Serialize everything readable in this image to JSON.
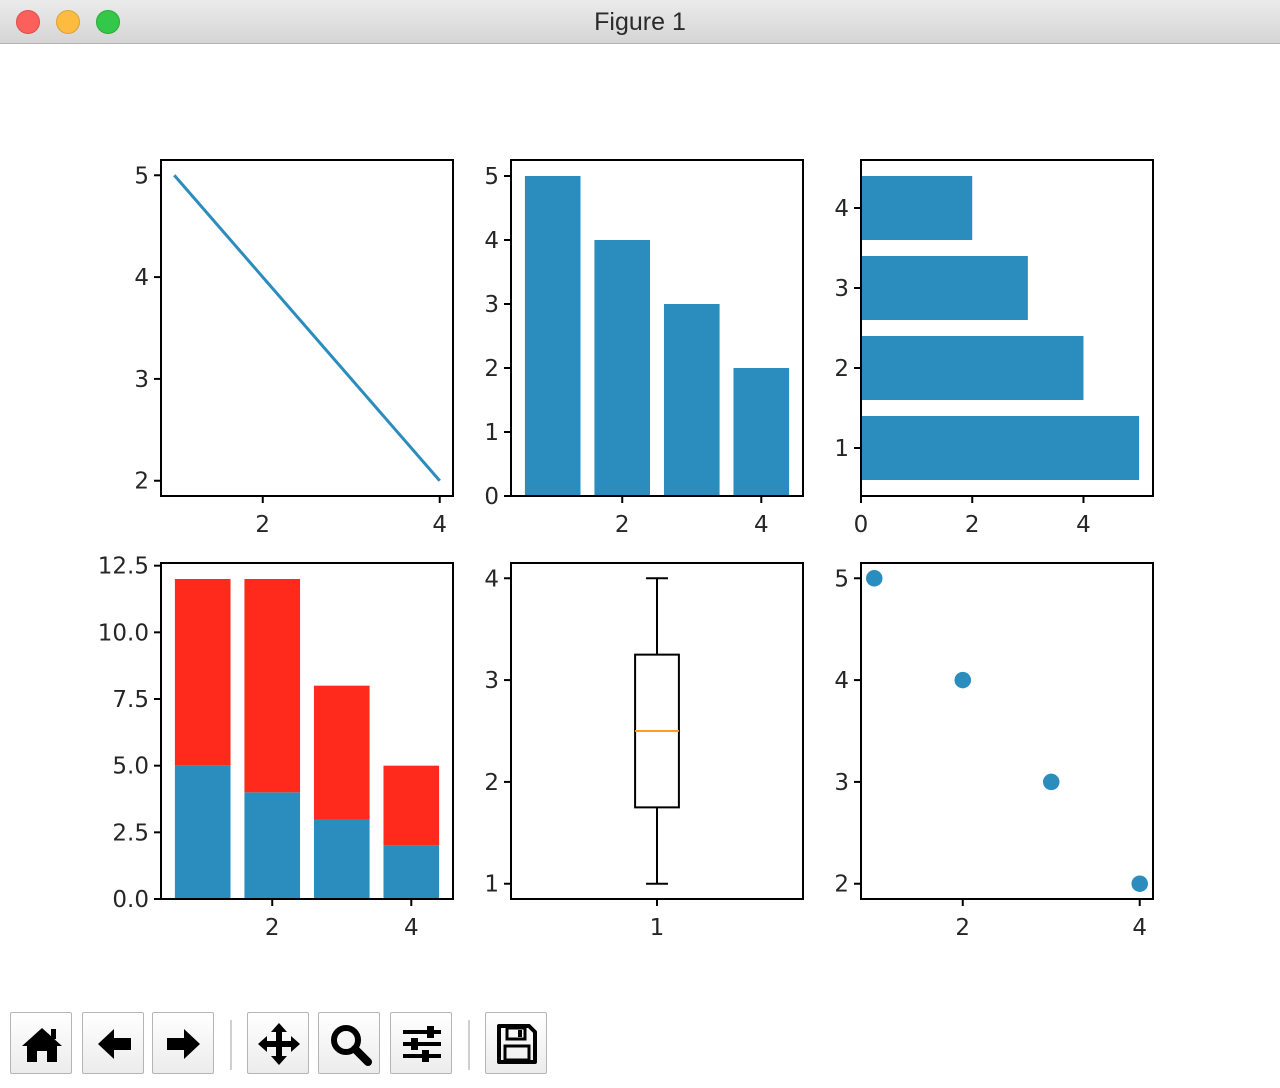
{
  "window": {
    "title": "Figure 1"
  },
  "toolbar": {
    "buttons": [
      {
        "name": "home",
        "icon": "home-icon"
      },
      {
        "name": "back",
        "icon": "arrow-left-icon"
      },
      {
        "name": "forward",
        "icon": "arrow-right-icon"
      },
      {
        "name": "pan",
        "icon": "move-icon"
      },
      {
        "name": "zoom",
        "icon": "magnifier-icon"
      },
      {
        "name": "configure-subplots",
        "icon": "sliders-icon"
      },
      {
        "name": "save",
        "icon": "floppy-disk-icon"
      }
    ]
  },
  "colors": {
    "blue": "#2b8cbe",
    "red": "#ff2a1c",
    "orange": "#ff9a2a",
    "axis": "#000000"
  },
  "chart_data": [
    {
      "type": "line",
      "x": [
        1,
        2,
        3,
        4
      ],
      "y": [
        5,
        4,
        3,
        2
      ],
      "xlim": [
        0.85,
        4.15
      ],
      "ylim": [
        1.85,
        5.15
      ],
      "xticks": [
        2,
        4
      ],
      "yticks": [
        2,
        3,
        4,
        5
      ],
      "xticklabels": [
        "2",
        "4"
      ],
      "yticklabels": [
        "2",
        "3",
        "4",
        "5"
      ],
      "xlabel": "",
      "ylabel": "",
      "grid": false
    },
    {
      "type": "bar",
      "x": [
        1,
        2,
        3,
        4
      ],
      "values": [
        5,
        4,
        3,
        2
      ],
      "xlim": [
        0.4,
        4.6
      ],
      "ylim": [
        0,
        5.25
      ],
      "xticks": [
        2,
        4
      ],
      "yticks": [
        0,
        1,
        2,
        3,
        4,
        5
      ],
      "xticklabels": [
        "2",
        "4"
      ],
      "yticklabels": [
        "0",
        "1",
        "2",
        "3",
        "4",
        "5"
      ],
      "xlabel": "",
      "ylabel": "",
      "grid": false
    },
    {
      "type": "bar",
      "orientation": "horizontal",
      "y": [
        1,
        2,
        3,
        4
      ],
      "values": [
        5,
        4,
        3,
        2
      ],
      "xlim": [
        0,
        5.25
      ],
      "ylim": [
        0.4,
        4.6
      ],
      "xticks": [
        0,
        2,
        4
      ],
      "yticks": [
        1,
        2,
        3,
        4
      ],
      "xticklabels": [
        "0",
        "2",
        "4"
      ],
      "yticklabels": [
        "1",
        "2",
        "3",
        "4"
      ],
      "xlabel": "",
      "ylabel": "",
      "grid": false
    },
    {
      "type": "bar",
      "stacked": true,
      "x": [
        1,
        2,
        3,
        4
      ],
      "series": [
        {
          "values": [
            5,
            4,
            3,
            2
          ]
        },
        {
          "values": [
            7,
            8,
            5,
            3
          ]
        }
      ],
      "xlim": [
        0.4,
        4.6
      ],
      "ylim": [
        0,
        12.6
      ],
      "xticks": [
        2,
        4
      ],
      "yticks": [
        0,
        2.5,
        5,
        7.5,
        10,
        12.5
      ],
      "xticklabels": [
        "2",
        "4"
      ],
      "yticklabels": [
        "0.0",
        "2.5",
        "5.0",
        "7.5",
        "10.0",
        "12.5"
      ],
      "xlabel": "",
      "ylabel": "",
      "grid": false
    },
    {
      "type": "box",
      "position": 1,
      "whisker_low": 1,
      "q1": 1.75,
      "median": 2.5,
      "q3": 3.25,
      "whisker_high": 4,
      "xlim": [
        0.5,
        1.5
      ],
      "ylim": [
        0.85,
        4.15
      ],
      "xticks": [
        1
      ],
      "yticks": [
        1,
        2,
        3,
        4
      ],
      "xticklabels": [
        "1"
      ],
      "yticklabels": [
        "1",
        "2",
        "3",
        "4"
      ],
      "xlabel": "",
      "ylabel": "",
      "grid": false
    },
    {
      "type": "scatter",
      "x": [
        1,
        2,
        3,
        4
      ],
      "y": [
        5,
        4,
        3,
        2
      ],
      "xlim": [
        0.85,
        4.15
      ],
      "ylim": [
        1.85,
        5.15
      ],
      "xticks": [
        2,
        4
      ],
      "yticks": [
        2,
        3,
        4,
        5
      ],
      "xticklabels": [
        "2",
        "4"
      ],
      "yticklabels": [
        "2",
        "3",
        "4",
        "5"
      ],
      "xlabel": "",
      "ylabel": "",
      "grid": false
    }
  ]
}
